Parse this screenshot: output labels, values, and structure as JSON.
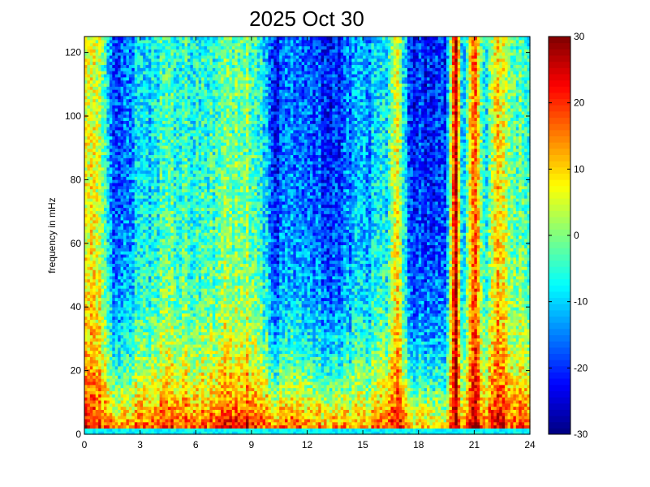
{
  "chart_data": {
    "type": "heatmap",
    "title": "2025 Oct 30",
    "xlabel": "",
    "ylabel": "frequency in mHz",
    "x_range": [
      0,
      24
    ],
    "y_range": [
      0,
      125
    ],
    "x_ticks": [
      0,
      3,
      6,
      9,
      12,
      15,
      18,
      21,
      24
    ],
    "y_ticks": [
      0,
      20,
      40,
      60,
      80,
      100,
      120
    ],
    "colorbar": {
      "range": [
        -30,
        30
      ],
      "ticks": [
        -30,
        -20,
        -10,
        0,
        10,
        20,
        30
      ],
      "colormap": "jet"
    },
    "grid": false,
    "power_profile": {
      "description_hours": [
        0,
        0.75,
        1.5,
        2.5,
        3.5,
        4.5,
        5.5,
        6.5,
        7.5,
        8.5,
        9.5,
        10.3,
        11.5,
        12.5,
        13.5,
        14.5,
        15.5,
        16.3,
        16.8,
        17.5,
        18.5,
        19.5,
        20.0,
        20.4,
        21.0,
        21.6,
        22.3,
        23.0,
        24
      ],
      "high_freq_level_dB": [
        5,
        5,
        -18,
        -15,
        -8,
        -5,
        -6,
        -5,
        -2,
        0,
        -6,
        -20,
        -16,
        -18,
        -22,
        -14,
        -12,
        -8,
        10,
        -20,
        -22,
        -18,
        30,
        -16,
        18,
        -10,
        10,
        0,
        -5
      ],
      "low_freq_level_dB": [
        25,
        22,
        18,
        18,
        20,
        22,
        22,
        22,
        24,
        26,
        22,
        20,
        22,
        18,
        18,
        16,
        16,
        20,
        28,
        16,
        14,
        12,
        30,
        14,
        28,
        18,
        26,
        22,
        22
      ]
    }
  }
}
